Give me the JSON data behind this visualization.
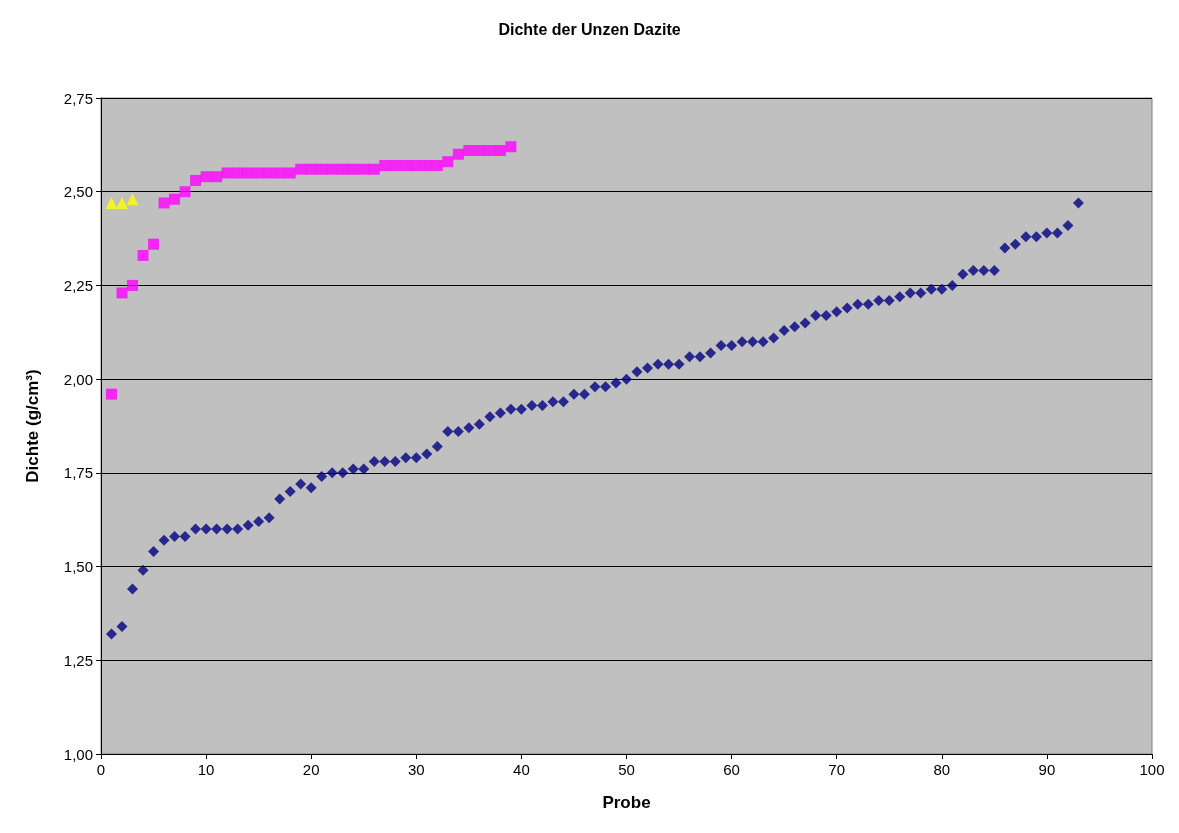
{
  "chart_data": {
    "type": "scatter",
    "title": "Dichte der Unzen Dazite",
    "xlabel": "Probe",
    "ylabel": "Dichte (g/cm³)",
    "xlim": [
      0,
      100
    ],
    "xticks": [
      0,
      10,
      20,
      30,
      40,
      50,
      60,
      70,
      80,
      90,
      100
    ],
    "ylim": [
      1,
      2.75
    ],
    "yticks": [
      {
        "value": 1,
        "label": "1,00"
      },
      {
        "value": 1.25,
        "label": "1,25"
      },
      {
        "value": 1.5,
        "label": "1,50"
      },
      {
        "value": 1.75,
        "label": "1,75"
      },
      {
        "value": 2,
        "label": "2,00"
      },
      {
        "value": 2.25,
        "label": "2,25"
      },
      {
        "value": 2.5,
        "label": "2,50"
      },
      {
        "value": 2.75,
        "label": "2,75"
      }
    ],
    "grid": "y",
    "series": [
      {
        "color": "#000080",
        "marker": "diamond",
        "x": [
          1,
          2,
          3,
          4,
          5,
          6,
          7,
          8,
          9,
          10,
          11,
          12,
          13,
          14,
          15,
          16,
          17,
          18,
          19,
          20,
          21,
          22,
          23,
          24,
          25,
          26,
          27,
          28,
          29,
          30,
          31,
          32,
          33,
          34,
          35,
          36,
          37,
          38,
          39,
          40,
          41,
          42,
          43,
          44,
          45,
          46,
          47,
          48,
          49,
          50,
          51,
          52,
          53,
          54,
          55,
          56,
          57,
          58,
          59,
          60,
          61,
          62,
          63,
          64,
          65,
          66,
          67,
          68,
          69,
          70,
          71,
          72,
          73,
          74,
          75,
          76,
          77,
          78,
          79,
          80,
          81,
          82,
          83,
          84,
          85,
          86,
          87,
          88,
          89,
          90,
          91,
          92,
          93
        ],
        "values": [
          1.32,
          1.34,
          1.44,
          1.49,
          1.54,
          1.57,
          1.58,
          1.58,
          1.6,
          1.6,
          1.6,
          1.6,
          1.6,
          1.61,
          1.62,
          1.63,
          1.68,
          1.7,
          1.72,
          1.71,
          1.74,
          1.75,
          1.75,
          1.76,
          1.76,
          1.78,
          1.78,
          1.78,
          1.79,
          1.79,
          1.8,
          1.82,
          1.86,
          1.86,
          1.87,
          1.88,
          1.9,
          1.91,
          1.92,
          1.92,
          1.93,
          1.93,
          1.94,
          1.94,
          1.96,
          1.96,
          1.98,
          1.98,
          1.99,
          2.0,
          2.02,
          2.03,
          2.04,
          2.04,
          2.04,
          2.06,
          2.06,
          2.07,
          2.09,
          2.09,
          2.1,
          2.1,
          2.1,
          2.11,
          2.13,
          2.14,
          2.15,
          2.17,
          2.17,
          2.18,
          2.19,
          2.2,
          2.2,
          2.21,
          2.21,
          2.22,
          2.23,
          2.23,
          2.24,
          2.24,
          2.25,
          2.28,
          2.29,
          2.29,
          2.29,
          2.35,
          2.36,
          2.38,
          2.38,
          2.39,
          2.39,
          2.41,
          2.47
        ]
      },
      {
        "color": "#ff00ff",
        "marker": "square",
        "x": [
          1,
          2,
          3,
          4,
          5,
          6,
          7,
          8,
          9,
          10,
          11,
          12,
          13,
          14,
          15,
          16,
          17,
          18,
          19,
          20,
          21,
          22,
          23,
          24,
          25,
          26,
          27,
          28,
          29,
          30,
          31,
          32,
          33,
          34,
          35,
          36,
          37,
          38,
          39
        ],
        "values": [
          1.96,
          2.23,
          2.25,
          2.33,
          2.36,
          2.47,
          2.48,
          2.5,
          2.53,
          2.54,
          2.54,
          2.55,
          2.55,
          2.55,
          2.55,
          2.55,
          2.55,
          2.55,
          2.56,
          2.56,
          2.56,
          2.56,
          2.56,
          2.56,
          2.56,
          2.56,
          2.57,
          2.57,
          2.57,
          2.57,
          2.57,
          2.57,
          2.58,
          2.6,
          2.61,
          2.61,
          2.61,
          2.61,
          2.62
        ]
      },
      {
        "color": "#ffff00",
        "marker": "triangle",
        "x": [
          1,
          2,
          3
        ],
        "values": [
          2.47,
          2.47,
          2.48
        ]
      }
    ]
  }
}
